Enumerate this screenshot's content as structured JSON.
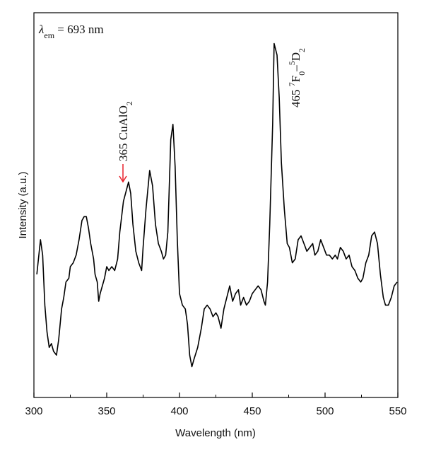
{
  "chart_data": {
    "type": "line",
    "xlabel": "Wavelength (nm)",
    "ylabel": "Intensity (a.u.)",
    "xlim": [
      300,
      550
    ],
    "xticks": [
      300,
      350,
      400,
      450,
      500,
      550
    ],
    "ylim": [
      0,
      100
    ],
    "yticks": [],
    "color": "#000000",
    "x": [
      302,
      304.5,
      306,
      307.5,
      309,
      310.5,
      312,
      313.5,
      315.5,
      317,
      319,
      320.5,
      322,
      324,
      325,
      327,
      329,
      331,
      333,
      334.5,
      336,
      337.5,
      339,
      341,
      342,
      343.5,
      344.5,
      345.5,
      347,
      348.5,
      350,
      351.5,
      353.5,
      355.5,
      357.5,
      359,
      361.5,
      365,
      366.5,
      368,
      370,
      372,
      374,
      375,
      377,
      379.5,
      381.5,
      383.5,
      385.5,
      387.5,
      389,
      390.5,
      392,
      394,
      395.5,
      397,
      398.5,
      400,
      402,
      404,
      405.5,
      407,
      408.5,
      410,
      412.5,
      415,
      417,
      419,
      421,
      423,
      425,
      426.5,
      428.5,
      430.5,
      432.5,
      434.5,
      436.5,
      438.5,
      440.5,
      442,
      444,
      446,
      448,
      450,
      452,
      454,
      456,
      458,
      459,
      460.5,
      462,
      464,
      465,
      467,
      468.5,
      470,
      472,
      474,
      475.5,
      477.5,
      479.5,
      481.5,
      483.5,
      485.5,
      487.5,
      489.5,
      491.5,
      493,
      495,
      497,
      499,
      501,
      503,
      505,
      507,
      508.5,
      510.5,
      512.5,
      514.5,
      516.5,
      518.5,
      520.5,
      522.5,
      524.5,
      526,
      528,
      530,
      532,
      534,
      536,
      538,
      540,
      541.5,
      543.5,
      545.5,
      547.5,
      549.5
    ],
    "values": [
      32,
      41,
      37,
      24,
      17,
      13,
      14,
      12,
      11,
      15,
      23,
      26,
      30,
      31,
      34,
      35,
      37,
      41,
      46,
      47,
      47,
      44,
      40,
      36,
      32,
      30,
      25,
      27,
      29,
      31,
      34,
      33,
      34,
      33,
      36,
      43,
      51,
      56,
      53,
      45,
      38,
      35,
      33,
      39,
      49,
      59,
      55,
      45,
      40,
      38,
      36,
      37,
      43,
      67,
      71,
      60,
      41,
      27,
      24,
      23,
      19,
      11,
      8,
      10,
      13,
      18,
      23,
      24,
      23,
      21,
      22,
      21,
      18,
      23,
      26,
      29,
      25,
      27,
      28,
      24,
      26,
      24,
      25,
      27,
      28,
      29,
      28,
      25,
      24,
      30,
      45,
      71,
      92,
      89,
      78,
      61,
      49,
      40,
      39,
      35,
      36,
      41,
      42,
      40,
      38,
      39,
      40,
      37,
      38,
      41,
      39,
      37,
      37,
      36,
      37,
      36,
      39,
      38,
      36,
      37,
      34,
      33,
      31,
      30,
      31,
      35,
      37,
      42,
      43,
      40,
      32,
      26,
      24,
      24,
      26,
      29,
      30
    ],
    "annotations": [
      {
        "parts": [
          {
            "text": "λ",
            "style": "italic"
          },
          {
            "text": "em",
            "shift": "sub"
          },
          {
            "text": " = 693 nm"
          }
        ]
      },
      {
        "parts": [
          {
            "text": "365 CuAlO"
          },
          {
            "text": "2",
            "shift": "sub"
          }
        ]
      },
      {
        "parts": [
          {
            "text": "465 "
          },
          {
            "text": "7",
            "shift": "super"
          },
          {
            "text": "F"
          },
          {
            "text": "0",
            "shift": "sub"
          },
          {
            "text": "–"
          },
          {
            "text": "5",
            "shift": "super"
          },
          {
            "text": "D"
          },
          {
            "text": "2",
            "shift": "sub"
          }
        ]
      }
    ]
  }
}
